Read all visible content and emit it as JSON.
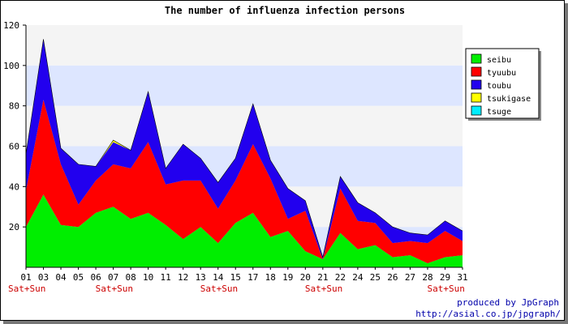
{
  "chart_data": {
    "type": "area",
    "stacked": true,
    "title": "The number of influenza infection persons",
    "categories": [
      "01",
      "03",
      "04",
      "05",
      "06",
      "07",
      "08",
      "10",
      "11",
      "12",
      "13",
      "14",
      "15",
      "17",
      "18",
      "19",
      "20",
      "21",
      "22",
      "24",
      "25",
      "26",
      "27",
      "28",
      "29",
      "31"
    ],
    "weekend_markers": [
      {
        "category": "01",
        "label": "Sat+Sun"
      },
      {
        "category": "07",
        "label": "Sat+Sun"
      },
      {
        "category": "14",
        "label": "Sat+Sun"
      },
      {
        "category": "21",
        "label": "Sat+Sun"
      },
      {
        "category": "29",
        "label": "Sat+Sun"
      }
    ],
    "ylim": [
      0,
      120
    ],
    "yticks": [
      20,
      40,
      60,
      80,
      100,
      120
    ],
    "grid": "horizontal bands",
    "legend_position": "right",
    "series": [
      {
        "name": "seibu",
        "color": "#00ee00",
        "values": [
          20,
          36,
          21,
          20,
          27,
          30,
          24,
          27,
          21,
          14,
          20,
          12,
          22,
          27,
          15,
          18,
          8,
          4,
          17,
          9,
          11,
          5,
          6,
          2,
          5,
          6
        ]
      },
      {
        "name": "tyuubu",
        "color": "#ff0000",
        "values": [
          18,
          47,
          30,
          11,
          16,
          21,
          25,
          35,
          20,
          29,
          23,
          17,
          21,
          34,
          29,
          6,
          20,
          0,
          22,
          14,
          11,
          7,
          7,
          10,
          13,
          7
        ]
      },
      {
        "name": "toubu",
        "color": "#2200ee",
        "values": [
          18,
          30,
          8,
          20,
          7,
          11,
          9,
          25,
          8,
          18,
          11,
          13,
          11,
          20,
          9,
          15,
          5,
          1,
          6,
          9,
          5,
          8,
          4,
          4,
          5,
          5
        ]
      },
      {
        "name": "tsukigase",
        "color": "#ffff00",
        "values": [
          0,
          0,
          0,
          0,
          0,
          1,
          0,
          0,
          0,
          0,
          0,
          0,
          0,
          0,
          0,
          0,
          0,
          0,
          0,
          0,
          0,
          0,
          0,
          0,
          0,
          0
        ]
      },
      {
        "name": "tsuge",
        "color": "#00eeff",
        "values": [
          0,
          0,
          0,
          0,
          0,
          0,
          0,
          0,
          0,
          0,
          0,
          0,
          0,
          0,
          0,
          0,
          0,
          0,
          0,
          0,
          0,
          0,
          0,
          0,
          0,
          0
        ]
      }
    ]
  },
  "credit": {
    "line1": "produced by JpGraph",
    "line2": "http://asial.co.jp/jpgraph/"
  }
}
